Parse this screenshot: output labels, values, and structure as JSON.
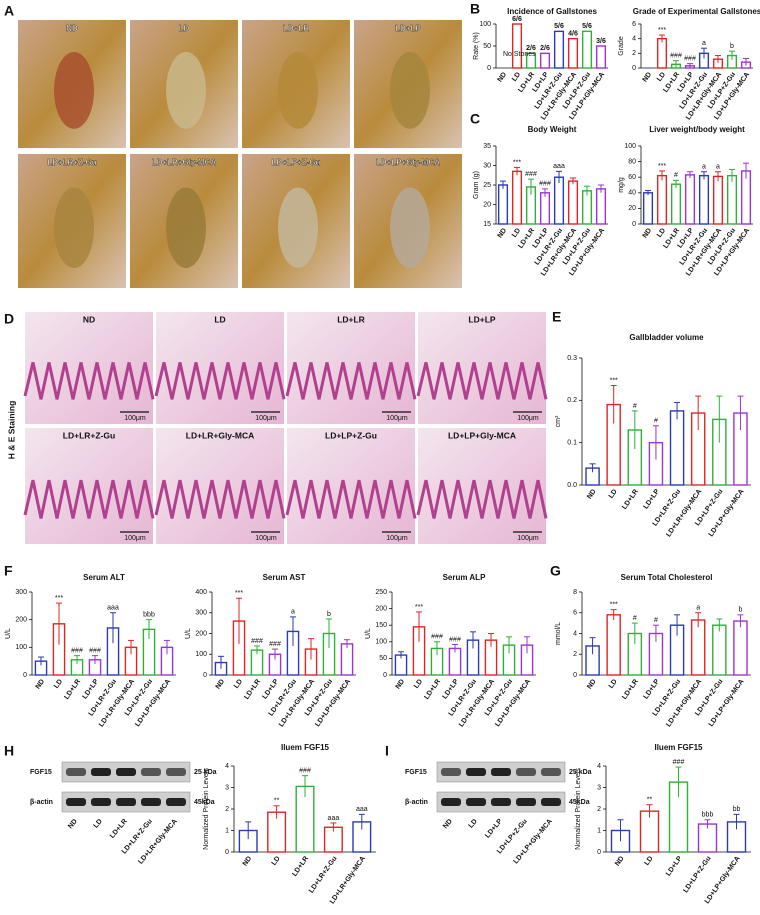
{
  "panel_labels": [
    "A",
    "B",
    "C",
    "D",
    "E",
    "F",
    "G",
    "H",
    "I"
  ],
  "photos": {
    "labels": [
      "ND",
      "LD",
      "LD+LR",
      "LD+LP",
      "LD+LR+Z-Gu",
      "LD+LR+Gly-MCA",
      "LD+LP+Z-Gu",
      "LD+LP+Gly-MCA"
    ]
  },
  "histology": {
    "labels": [
      "ND",
      "LD",
      "LD+LR",
      "LD+LP",
      "LD+LR+Z-Gu",
      "LD+LR+Gly-MCA",
      "LD+LP+Z-Gu",
      "LD+LP+Gly-MCA"
    ],
    "scale_bar": "100μm",
    "side_label": "H & E Staining"
  },
  "blots": [
    {
      "rows": [
        "FGF15",
        "β-actin"
      ],
      "sizes": [
        "25 kDa",
        "45kDa"
      ],
      "lanes": [
        "ND",
        "LD",
        "LD+LR",
        "LD+LR+Z-Gu",
        "LD+LR+Gly-MCA"
      ]
    },
    {
      "rows": [
        "FGF15",
        "β-actin"
      ],
      "sizes": [
        "25 kDa",
        "45kDa"
      ],
      "lanes": [
        "ND",
        "LD",
        "LD+LP",
        "LD+LP+Z-Gu",
        "LD+LP+Gly-MCA"
      ]
    }
  ],
  "chart_data": [
    {
      "type": "bar",
      "title": "Incidence of Gallstones",
      "ylabel": "Rate (%)",
      "note": "No Stones",
      "categories": [
        "ND",
        "LD",
        "LD+LR",
        "LD+LP",
        "LD+LR+Z-Gu",
        "LD+LR+Gly-MCA",
        "LD+LP+Z-Gu",
        "LD+LP+Gly-MCA"
      ],
      "values": [
        0,
        100,
        33.3,
        33.3,
        83.3,
        66.7,
        83.3,
        50
      ],
      "value_labels": [
        null,
        "6/6",
        "2/6",
        "2/6",
        "5/6",
        "4/6",
        "5/6",
        "3/6"
      ],
      "colors": [
        "#2b3bb0",
        "#e02424",
        "#2eb136",
        "#9b34d2",
        "#2b3bb0",
        "#e02424",
        "#2eb136",
        "#9b34d2"
      ],
      "ylim": [
        0,
        100
      ],
      "yticks": [
        0,
        50,
        100
      ]
    },
    {
      "type": "bar",
      "title": "Grade of Experimental Gallstones",
      "ylabel": "Grade",
      "categories": [
        "ND",
        "LD",
        "LD+LR",
        "LD+LP",
        "LD+LR+Z-Gu",
        "LD+LR+Gly-MCA",
        "LD+LP+Z-Gu",
        "LD+LP+Gly-MCA"
      ],
      "values": [
        0,
        4,
        0.5,
        0.3,
        2,
        1.2,
        1.7,
        0.8
      ],
      "errors": [
        0,
        0.5,
        0.5,
        0.3,
        0.7,
        0.5,
        0.6,
        0.5
      ],
      "annotations": [
        null,
        "***",
        "###",
        "###",
        "a",
        null,
        "b",
        null
      ],
      "colors": [
        "#2b3bb0",
        "#e02424",
        "#2eb136",
        "#9b34d2",
        "#2b3bb0",
        "#e02424",
        "#2eb136",
        "#9b34d2"
      ],
      "ylim": [
        0,
        6
      ],
      "yticks": [
        0,
        2,
        4,
        6
      ]
    },
    {
      "type": "bar",
      "title": "Body Weight",
      "ylabel": "Gram (g)",
      "categories": [
        "ND",
        "LD",
        "LD+LR",
        "LD+LP",
        "LD+LR+Z-Gu",
        "LD+LR+Gly-MCA",
        "LD+LP+Z-Gu",
        "LD+LP+Gly-MCA"
      ],
      "values": [
        25,
        28.5,
        24.5,
        23,
        27,
        26,
        23.5,
        24
      ],
      "errors": [
        1,
        1,
        2,
        1,
        1.5,
        0.8,
        1.2,
        1
      ],
      "annotations": [
        null,
        "***",
        "###",
        "###",
        "aaa",
        null,
        null,
        null
      ],
      "colors": [
        "#2b3bb0",
        "#e02424",
        "#2eb136",
        "#9b34d2",
        "#2b3bb0",
        "#e02424",
        "#2eb136",
        "#9b34d2"
      ],
      "ylim": [
        15,
        35
      ],
      "yticks": [
        15,
        20,
        25,
        30,
        35
      ]
    },
    {
      "type": "bar",
      "title": "Liver weight/body weight",
      "ylabel": "mg/g",
      "categories": [
        "ND",
        "LD",
        "LD+LR",
        "LD+LP",
        "LD+LR+Z-Gu",
        "LD+LR+Gly-MCA",
        "LD+LP+Z-Gu",
        "LD+LP+Gly-MCA"
      ],
      "values": [
        40,
        62,
        51,
        63,
        62,
        61,
        62,
        68
      ],
      "errors": [
        3,
        6,
        5,
        4,
        5,
        6,
        8,
        10
      ],
      "annotations": [
        null,
        "***",
        "#",
        null,
        "a",
        "a",
        null,
        null
      ],
      "colors": [
        "#2b3bb0",
        "#e02424",
        "#2eb136",
        "#9b34d2",
        "#2b3bb0",
        "#e02424",
        "#2eb136",
        "#9b34d2"
      ],
      "ylim": [
        0,
        100
      ],
      "yticks": [
        0,
        20,
        40,
        60,
        80,
        100
      ]
    },
    {
      "type": "bar",
      "title": "Gallbladder volume",
      "ylabel": "cm³",
      "categories": [
        "ND",
        "LD",
        "LD+LR",
        "LD+LP",
        "LD+LR+Z-Gu",
        "LD+LR+Gly-MCA",
        "LD+LP+Z-Gu",
        "LD+LP+Gly-MCA"
      ],
      "values": [
        0.04,
        0.19,
        0.13,
        0.1,
        0.175,
        0.17,
        0.155,
        0.17
      ],
      "errors": [
        0.01,
        0.045,
        0.045,
        0.04,
        0.02,
        0.04,
        0.055,
        0.04
      ],
      "annotations": [
        null,
        "***",
        "#",
        "#",
        null,
        null,
        null,
        null
      ],
      "colors": [
        "#2b3bb0",
        "#e02424",
        "#2eb136",
        "#9b34d2",
        "#2b3bb0",
        "#e02424",
        "#2eb136",
        "#9b34d2"
      ],
      "ylim": [
        0,
        0.3
      ],
      "yticks": [
        {
          "value": 0,
          "label": "0.0"
        },
        0.1,
        0.2,
        0.3
      ]
    },
    {
      "type": "bar",
      "title": "Serum ALT",
      "ylabel": "U/L",
      "categories": [
        "ND",
        "LD",
        "LD+LR",
        "LD+LP",
        "LD+LR+Z-Gu",
        "LD+LR+Gly-MCA",
        "LD+LP+Z-Gu",
        "LD+LP+Gly-MCA"
      ],
      "values": [
        50,
        185,
        55,
        55,
        170,
        100,
        165,
        100
      ],
      "errors": [
        15,
        75,
        15,
        15,
        55,
        25,
        35,
        25
      ],
      "annotations": [
        null,
        "***",
        "###",
        "###",
        "aaa",
        null,
        "bbb",
        null
      ],
      "colors": [
        "#2b3bb0",
        "#e02424",
        "#2eb136",
        "#9b34d2",
        "#2b3bb0",
        "#e02424",
        "#2eb136",
        "#9b34d2"
      ],
      "ylim": [
        0,
        300
      ],
      "yticks": [
        0,
        100,
        200,
        300
      ]
    },
    {
      "type": "bar",
      "title": "Serum AST",
      "ylabel": "U/L",
      "categories": [
        "ND",
        "LD",
        "LD+LR",
        "LD+LP",
        "LD+LR+Z-Gu",
        "LD+LR+Gly-MCA",
        "LD+LP+Z-Gu",
        "LD+LP+Gly-MCA"
      ],
      "values": [
        60,
        260,
        120,
        100,
        210,
        125,
        200,
        150
      ],
      "errors": [
        30,
        110,
        20,
        25,
        70,
        50,
        70,
        20
      ],
      "annotations": [
        null,
        "***",
        "###",
        "###",
        "a",
        null,
        "b",
        null
      ],
      "colors": [
        "#2b3bb0",
        "#e02424",
        "#2eb136",
        "#9b34d2",
        "#2b3bb0",
        "#e02424",
        "#2eb136",
        "#9b34d2"
      ],
      "ylim": [
        0,
        400
      ],
      "yticks": [
        0,
        100,
        200,
        300,
        400
      ]
    },
    {
      "type": "bar",
      "title": "Serum ALP",
      "ylabel": "U/L",
      "categories": [
        "ND",
        "LD",
        "LD+LR",
        "LD+LP",
        "LD+LR+Z-Gu",
        "LD+LR+Gly-MCA",
        "LD+LP+Z-Gu",
        "LD+LP+Gly-MCA"
      ],
      "values": [
        60,
        145,
        80,
        80,
        105,
        105,
        90,
        90
      ],
      "errors": [
        10,
        45,
        20,
        12,
        25,
        20,
        25,
        25
      ],
      "annotations": [
        null,
        "***",
        "###",
        "###",
        null,
        null,
        null,
        null
      ],
      "colors": [
        "#2b3bb0",
        "#e02424",
        "#2eb136",
        "#9b34d2",
        "#2b3bb0",
        "#e02424",
        "#2eb136",
        "#9b34d2"
      ],
      "ylim": [
        0,
        250
      ],
      "yticks": [
        0,
        50,
        100,
        150,
        200,
        250
      ]
    },
    {
      "type": "bar",
      "title": "Serum Total Cholesterol",
      "ylabel": "mmol/L",
      "categories": [
        "ND",
        "LD",
        "LD+LR",
        "LD+LP",
        "LD+LR+Z-Gu",
        "LD+LR+Gly-MCA",
        "LD+LP+Z-Gu",
        "LD+LP+Gly-MCA"
      ],
      "values": [
        2.8,
        5.8,
        4.0,
        4.0,
        4.8,
        5.3,
        4.8,
        5.2
      ],
      "errors": [
        0.8,
        0.5,
        1.0,
        0.8,
        1.0,
        0.7,
        0.6,
        0.6
      ],
      "annotations": [
        null,
        "***",
        "#",
        "#",
        null,
        "a",
        null,
        "b"
      ],
      "colors": [
        "#2b3bb0",
        "#e02424",
        "#2eb136",
        "#9b34d2",
        "#2b3bb0",
        "#e02424",
        "#2eb136",
        "#9b34d2"
      ],
      "ylim": [
        0,
        8
      ],
      "yticks": [
        0,
        2,
        4,
        6,
        8
      ]
    },
    {
      "type": "bar",
      "title": "Iluem FGF15",
      "ylabel": "Normalized Protein Levels",
      "categories": [
        "ND",
        "LD",
        "LD+LR",
        "LD+LR+Z-Gu",
        "LD+LR+Gly-MCA"
      ],
      "values": [
        1,
        1.85,
        3.05,
        1.15,
        1.4
      ],
      "errors": [
        0.4,
        0.3,
        0.5,
        0.2,
        0.35
      ],
      "annotations": [
        null,
        "**",
        "###",
        "aaa",
        "aaa"
      ],
      "colors": [
        "#2b3bb0",
        "#e02424",
        "#2eb136",
        "#e02424",
        "#2b3bb0"
      ],
      "ylim": [
        0,
        4
      ],
      "yticks": [
        0,
        1,
        2,
        3,
        4
      ]
    },
    {
      "type": "bar",
      "title": "Iluem FGF15",
      "ylabel": "Normalized Protein Levels",
      "categories": [
        "ND",
        "LD",
        "LD+LP",
        "LD+LP+Z-Gu",
        "LD+LP+Gly-MCA"
      ],
      "values": [
        1,
        1.9,
        3.25,
        1.3,
        1.4
      ],
      "errors": [
        0.5,
        0.3,
        0.7,
        0.2,
        0.35
      ],
      "annotations": [
        null,
        "**",
        "###",
        "bbb",
        "bb"
      ],
      "colors": [
        "#2b3bb0",
        "#e02424",
        "#2eb136",
        "#9b34d2",
        "#2b3bb0"
      ],
      "ylim": [
        0,
        4
      ],
      "yticks": [
        0,
        1,
        2,
        3,
        4
      ]
    }
  ]
}
